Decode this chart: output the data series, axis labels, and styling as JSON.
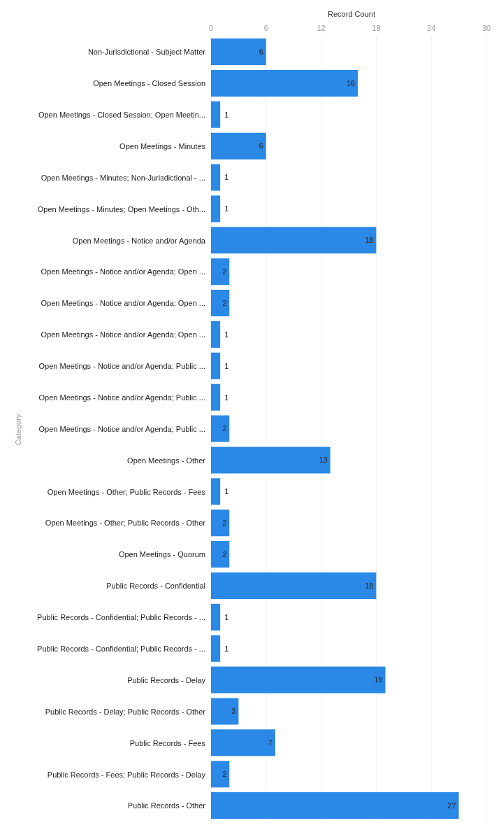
{
  "chart_data": {
    "type": "bar",
    "orientation": "horizontal",
    "xlabel": "Record Count",
    "ylabel": "Category",
    "categories": [
      "Non-Jurisdictional - Subject Matter",
      "Open Meetings - Closed Session",
      "Open Meetings - Closed Session; Open Meetin...",
      "Open Meetings - Minutes",
      "Open Meetings - Minutes; Non-Jurisdictional - ...",
      "Open Meetings - Minutes; Open Meetings - Oth...",
      "Open Meetings - Notice and/or Agenda",
      "Open Meetings - Notice and/or Agenda; Open ...",
      "Open Meetings - Notice and/or Agenda; Open ...",
      "Open Meetings - Notice and/or Agenda; Open ...",
      "Open Meetings - Notice and/or Agenda; Public ...",
      "Open Meetings - Notice and/or Agenda; Public ...",
      "Open Meetings - Notice and/or Agenda; Public ...",
      "Open Meetings - Other",
      "Open Meetings - Other; Public Records - Fees",
      "Open Meetings - Other; Public Records - Other",
      "Open Meetings - Quorum",
      "Public Records - Confidential",
      "Public Records - Confidential; Public Records - ...",
      "Public Records - Confidential; Public Records - ...",
      "Public Records - Delay",
      "Public Records - Delay; Public Records - Other",
      "Public Records - Fees",
      "Public Records - Fees; Public Records - Delay",
      "Public Records - Other"
    ],
    "values": [
      6,
      16,
      1,
      6,
      1,
      1,
      18,
      2,
      2,
      1,
      1,
      1,
      2,
      13,
      1,
      2,
      2,
      18,
      1,
      1,
      19,
      3,
      7,
      2,
      27
    ],
    "color": "#2a88e6",
    "xlim": [
      0,
      30
    ],
    "xticks": [
      0,
      6,
      12,
      18,
      24,
      30
    ],
    "grid": "x",
    "data_labels": true
  }
}
